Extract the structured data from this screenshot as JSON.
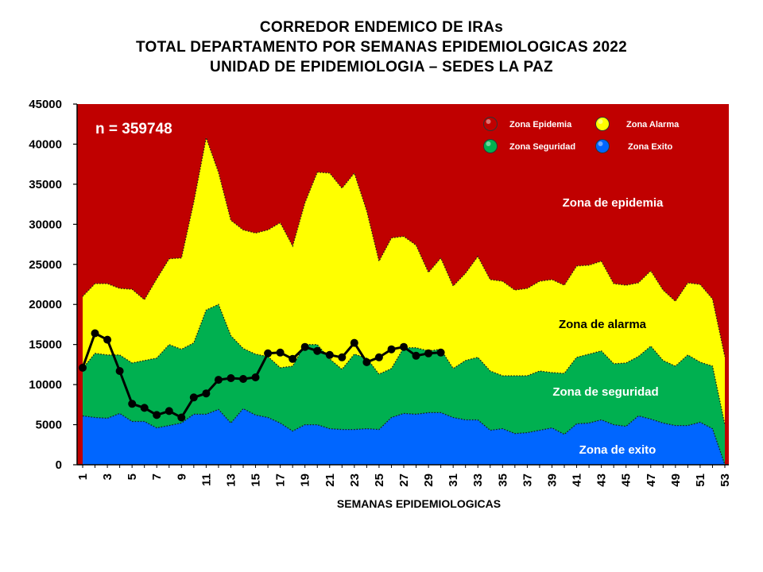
{
  "title_lines": [
    "CORREDOR ENDEMICO DE IRAs",
    "TOTAL DEPARTAMENTO POR SEMANAS EPIDEMIOLOGICAS 2022",
    "UNIDAD DE EPIDEMIOLOGIA – SEDES LA PAZ"
  ],
  "n_label": "n =   359748",
  "legend": [
    {
      "label": "Zona Epidemia",
      "color": "#c00000"
    },
    {
      "label": "Zona Alarma",
      "color": "#ffff00"
    },
    {
      "label": "Zona Seguridad",
      "color": "#00b050"
    },
    {
      "label": "Zona Exito",
      "color": "#0066ff"
    }
  ],
  "zone_labels": {
    "epidemia": "Zona de epidemia",
    "alarma": "Zona de alarma",
    "seguridad": "Zona de  seguridad",
    "exito": "Zona de exito"
  },
  "chart_data": {
    "type": "area",
    "xlabel": "SEMANAS EPIDEMIOLOGICAS",
    "ylabel": "",
    "ylim": [
      0,
      45000
    ],
    "yticks": [
      0,
      5000,
      10000,
      15000,
      20000,
      25000,
      30000,
      35000,
      40000,
      45000
    ],
    "xticks": [
      1,
      3,
      5,
      7,
      9,
      11,
      13,
      15,
      17,
      19,
      21,
      23,
      25,
      27,
      29,
      31,
      33,
      35,
      37,
      39,
      41,
      43,
      45,
      47,
      49,
      51,
      53
    ],
    "weeks": [
      1,
      2,
      3,
      4,
      5,
      6,
      7,
      8,
      9,
      10,
      11,
      12,
      13,
      14,
      15,
      16,
      17,
      18,
      19,
      20,
      21,
      22,
      23,
      24,
      25,
      26,
      27,
      28,
      29,
      30,
      31,
      32,
      33,
      34,
      35,
      36,
      37,
      38,
      39,
      40,
      41,
      42,
      43,
      44,
      45,
      46,
      47,
      48,
      49,
      50,
      51,
      52,
      53
    ],
    "grid": false,
    "legend_position": "top-right",
    "colors": {
      "epidemia": "#c00000",
      "alarma": "#ffff00",
      "seguridad": "#00b050",
      "exito": "#0066ff",
      "observed": "#000000"
    },
    "series": [
      {
        "name": "Zona Exito",
        "values": [
          6100,
          5900,
          5800,
          6400,
          5400,
          5400,
          4600,
          4900,
          5200,
          6300,
          6300,
          6900,
          5200,
          7000,
          6200,
          5900,
          5200,
          4200,
          5000,
          5000,
          4500,
          4400,
          4400,
          4500,
          4400,
          5900,
          6400,
          6300,
          6500,
          6500,
          5900,
          5600,
          5600,
          4300,
          4500,
          3900,
          4000,
          4300,
          4600,
          3800,
          5100,
          5200,
          5600,
          5000,
          4800,
          6100,
          5700,
          5200,
          4900,
          4900,
          5300,
          4500,
          0
        ]
      },
      {
        "name": "Zona Seguridad",
        "values": [
          12000,
          13900,
          13700,
          13700,
          12700,
          13000,
          13300,
          15000,
          14400,
          15200,
          19300,
          20000,
          16100,
          14500,
          13800,
          13500,
          12100,
          12300,
          15000,
          15000,
          13200,
          11900,
          13800,
          13300,
          11300,
          12000,
          14600,
          14600,
          14200,
          14400,
          12000,
          13000,
          13400,
          11700,
          11100,
          11100,
          11100,
          11700,
          11500,
          11400,
          13400,
          13800,
          14200,
          12600,
          12700,
          13500,
          14800,
          13000,
          12300,
          13700,
          12800,
          12300,
          5000
        ]
      },
      {
        "name": "Zona Alarma",
        "values": [
          21000,
          22600,
          22600,
          22000,
          21900,
          20600,
          23200,
          25700,
          25800,
          32800,
          40800,
          36500,
          30500,
          29300,
          28900,
          29300,
          30200,
          27300,
          32700,
          36500,
          36400,
          34500,
          36400,
          31700,
          25400,
          28300,
          28500,
          27400,
          24000,
          25800,
          22300,
          23900,
          26000,
          23100,
          22900,
          21800,
          22000,
          22900,
          23100,
          22400,
          24800,
          24900,
          25400,
          22600,
          22400,
          22700,
          24200,
          21800,
          20400,
          22700,
          22500,
          20700,
          13500
        ]
      },
      {
        "name": "Zona Epidemia",
        "values": [
          45000,
          45000,
          45000,
          45000,
          45000,
          45000,
          45000,
          45000,
          45000,
          45000,
          45000,
          45000,
          45000,
          45000,
          45000,
          45000,
          45000,
          45000,
          45000,
          45000,
          45000,
          45000,
          45000,
          45000,
          45000,
          45000,
          45000,
          45000,
          45000,
          45000,
          45000,
          45000,
          45000,
          45000,
          45000,
          45000,
          45000,
          45000,
          45000,
          45000,
          45000,
          45000,
          45000,
          45000,
          45000,
          45000,
          45000,
          45000,
          45000,
          45000,
          45000,
          45000,
          45000
        ]
      }
    ],
    "observed": {
      "weeks": [
        1,
        2,
        3,
        4,
        5,
        6,
        7,
        8,
        9,
        10,
        11,
        12,
        13,
        14,
        15,
        16,
        17,
        18,
        19,
        20,
        21,
        22,
        23,
        24,
        25,
        26,
        27,
        28,
        29,
        30
      ],
      "values": [
        12100,
        16400,
        15600,
        11700,
        7600,
        7100,
        6200,
        6700,
        5900,
        8400,
        8900,
        10600,
        10800,
        10700,
        10900,
        13900,
        14000,
        13200,
        14700,
        14200,
        13700,
        13400,
        15200,
        12800,
        13400,
        14400,
        14700,
        13600,
        13900,
        14000
      ]
    }
  }
}
